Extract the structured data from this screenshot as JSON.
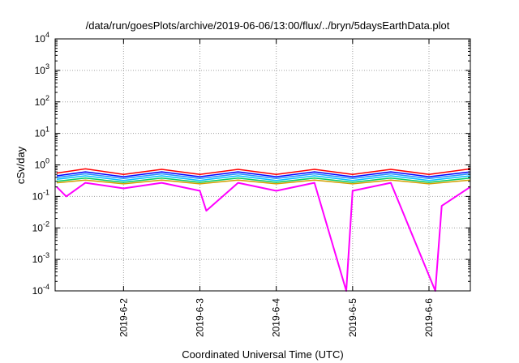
{
  "chart_data": {
    "type": "line",
    "title": "/data/run/goesPlots/archive/2019-06-06/13:00/flux/../bryn/5daysEarthData.plot",
    "xlabel": "Coordinated Universal Time (UTC)",
    "ylabel": "cSv/day",
    "yscale": "log",
    "ylim": [
      0.0001,
      10000
    ],
    "xlim": [
      "2019-06-01T02:30",
      "2019-06-06T13:00"
    ],
    "grid": true,
    "y_ticks": [
      {
        "value": 0.0001,
        "base": "10",
        "exp": "-4"
      },
      {
        "value": 0.001,
        "base": "10",
        "exp": "-3"
      },
      {
        "value": 0.01,
        "base": "10",
        "exp": "-2"
      },
      {
        "value": 0.1,
        "base": "10",
        "exp": "-1"
      },
      {
        "value": 1,
        "base": "10",
        "exp": "0"
      },
      {
        "value": 10,
        "base": "10",
        "exp": "1"
      },
      {
        "value": 100,
        "base": "10",
        "exp": "2"
      },
      {
        "value": 1000,
        "base": "10",
        "exp": "3"
      },
      {
        "value": 10000,
        "base": "10",
        "exp": "4"
      }
    ],
    "x_ticks": [
      {
        "value": "2019-06-02",
        "label": "2019-6-2"
      },
      {
        "value": "2019-06-03",
        "label": "2019-6-3"
      },
      {
        "value": "2019-06-04",
        "label": "2019-6-4"
      },
      {
        "value": "2019-06-05",
        "label": "2019-6-5"
      },
      {
        "value": "2019-06-06",
        "label": "2019-6-6"
      }
    ],
    "series": [
      {
        "color": "#ff0000",
        "points": [
          [
            "2019-06-01T03:00",
            0.55
          ],
          [
            "2019-06-01T12:00",
            0.75
          ],
          [
            "2019-06-02T00:00",
            0.5
          ],
          [
            "2019-06-02T12:00",
            0.72
          ],
          [
            "2019-06-03T00:00",
            0.5
          ],
          [
            "2019-06-03T12:00",
            0.72
          ],
          [
            "2019-06-04T00:00",
            0.5
          ],
          [
            "2019-06-04T12:00",
            0.72
          ],
          [
            "2019-06-05T00:00",
            0.5
          ],
          [
            "2019-06-05T12:00",
            0.72
          ],
          [
            "2019-06-06T00:00",
            0.5
          ],
          [
            "2019-06-06T13:00",
            0.75
          ]
        ]
      },
      {
        "color": "#0000ff",
        "points": [
          [
            "2019-06-01T03:00",
            0.45
          ],
          [
            "2019-06-01T12:00",
            0.6
          ],
          [
            "2019-06-02T00:00",
            0.42
          ],
          [
            "2019-06-02T12:00",
            0.6
          ],
          [
            "2019-06-03T00:00",
            0.42
          ],
          [
            "2019-06-03T12:00",
            0.6
          ],
          [
            "2019-06-04T00:00",
            0.42
          ],
          [
            "2019-06-04T12:00",
            0.6
          ],
          [
            "2019-06-05T00:00",
            0.42
          ],
          [
            "2019-06-05T12:00",
            0.6
          ],
          [
            "2019-06-06T00:00",
            0.42
          ],
          [
            "2019-06-06T13:00",
            0.6
          ]
        ]
      },
      {
        "color": "#1e90ff",
        "points": [
          [
            "2019-06-01T03:00",
            0.4
          ],
          [
            "2019-06-01T12:00",
            0.52
          ],
          [
            "2019-06-02T00:00",
            0.37
          ],
          [
            "2019-06-02T12:00",
            0.52
          ],
          [
            "2019-06-03T00:00",
            0.37
          ],
          [
            "2019-06-03T12:00",
            0.52
          ],
          [
            "2019-06-04T00:00",
            0.37
          ],
          [
            "2019-06-04T12:00",
            0.52
          ],
          [
            "2019-06-05T00:00",
            0.37
          ],
          [
            "2019-06-05T12:00",
            0.52
          ],
          [
            "2019-06-06T00:00",
            0.37
          ],
          [
            "2019-06-06T13:00",
            0.52
          ]
        ]
      },
      {
        "color": "#00bfff",
        "points": [
          [
            "2019-06-01T03:00",
            0.35
          ],
          [
            "2019-06-01T12:00",
            0.45
          ],
          [
            "2019-06-02T00:00",
            0.32
          ],
          [
            "2019-06-02T12:00",
            0.45
          ],
          [
            "2019-06-03T00:00",
            0.32
          ],
          [
            "2019-06-03T12:00",
            0.45
          ],
          [
            "2019-06-04T00:00",
            0.32
          ],
          [
            "2019-06-04T12:00",
            0.45
          ],
          [
            "2019-06-05T00:00",
            0.32
          ],
          [
            "2019-06-05T12:00",
            0.45
          ],
          [
            "2019-06-06T00:00",
            0.32
          ],
          [
            "2019-06-06T13:00",
            0.45
          ]
        ]
      },
      {
        "color": "#00cc66",
        "points": [
          [
            "2019-06-01T03:00",
            0.3
          ],
          [
            "2019-06-01T12:00",
            0.38
          ],
          [
            "2019-06-02T00:00",
            0.28
          ],
          [
            "2019-06-02T12:00",
            0.38
          ],
          [
            "2019-06-03T00:00",
            0.28
          ],
          [
            "2019-06-03T12:00",
            0.38
          ],
          [
            "2019-06-04T00:00",
            0.28
          ],
          [
            "2019-06-04T12:00",
            0.38
          ],
          [
            "2019-06-05T00:00",
            0.28
          ],
          [
            "2019-06-05T12:00",
            0.38
          ],
          [
            "2019-06-06T00:00",
            0.28
          ],
          [
            "2019-06-06T13:00",
            0.38
          ]
        ]
      },
      {
        "color": "#d2a000",
        "points": [
          [
            "2019-06-01T03:00",
            0.27
          ],
          [
            "2019-06-01T12:00",
            0.33
          ],
          [
            "2019-06-02T00:00",
            0.25
          ],
          [
            "2019-06-02T12:00",
            0.33
          ],
          [
            "2019-06-03T00:00",
            0.25
          ],
          [
            "2019-06-03T12:00",
            0.33
          ],
          [
            "2019-06-04T00:00",
            0.25
          ],
          [
            "2019-06-04T12:00",
            0.33
          ],
          [
            "2019-06-05T00:00",
            0.25
          ],
          [
            "2019-06-05T12:00",
            0.33
          ],
          [
            "2019-06-06T00:00",
            0.25
          ],
          [
            "2019-06-06T13:00",
            0.33
          ]
        ]
      },
      {
        "color": "#ff00ff",
        "points": [
          [
            "2019-06-01T03:00",
            0.2
          ],
          [
            "2019-06-01T06:00",
            0.1
          ],
          [
            "2019-06-01T12:00",
            0.27
          ],
          [
            "2019-06-02T00:00",
            0.18
          ],
          [
            "2019-06-02T12:00",
            0.27
          ],
          [
            "2019-06-03T00:00",
            0.15
          ],
          [
            "2019-06-03T02:00",
            0.035
          ],
          [
            "2019-06-03T12:00",
            0.27
          ],
          [
            "2019-06-04T00:00",
            0.15
          ],
          [
            "2019-06-04T12:00",
            0.27
          ],
          [
            "2019-06-04T22:00",
            0.0001
          ],
          [
            "2019-06-05T00:00",
            0.15
          ],
          [
            "2019-06-05T12:00",
            0.27
          ],
          [
            "2019-06-06T02:00",
            0.0001
          ],
          [
            "2019-06-06T04:00",
            0.05
          ],
          [
            "2019-06-06T13:00",
            0.2
          ]
        ]
      }
    ]
  }
}
